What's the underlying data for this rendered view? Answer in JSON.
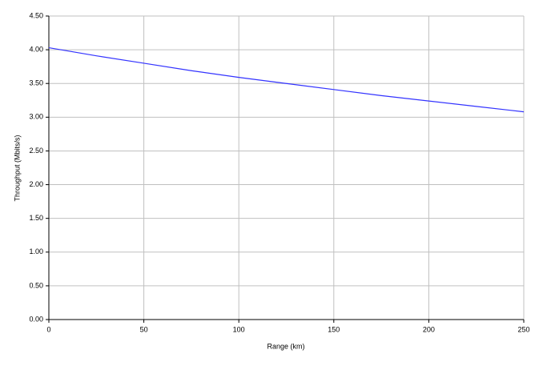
{
  "chart_data": {
    "type": "line",
    "x_label": "Range (km)",
    "y_label": "Throughput (Mbits/s)",
    "x": [
      0,
      25,
      50,
      75,
      100,
      125,
      150,
      175,
      200,
      225,
      250
    ],
    "values": [
      4.03,
      3.91,
      3.8,
      3.69,
      3.59,
      3.5,
      3.41,
      3.32,
      3.24,
      3.16,
      3.08
    ],
    "color": "#3333ff",
    "xlim": [
      0,
      250
    ],
    "xticks": [
      0,
      50,
      100,
      150,
      200,
      250
    ],
    "ylim": [
      0,
      4.5
    ],
    "yticks": [
      {
        "value": 0,
        "label": "0.00"
      },
      {
        "value": 0.5,
        "label": "0.50"
      },
      {
        "value": 1,
        "label": "1.00"
      },
      {
        "value": 1.5,
        "label": "1.50"
      },
      {
        "value": 2,
        "label": "2.00"
      },
      {
        "value": 2.5,
        "label": "2.50"
      },
      {
        "value": 3,
        "label": "3.00"
      },
      {
        "value": 3.5,
        "label": "3.50"
      },
      {
        "value": 4,
        "label": "4.00"
      },
      {
        "value": 4.5,
        "label": "4.50"
      }
    ],
    "grid": true
  }
}
